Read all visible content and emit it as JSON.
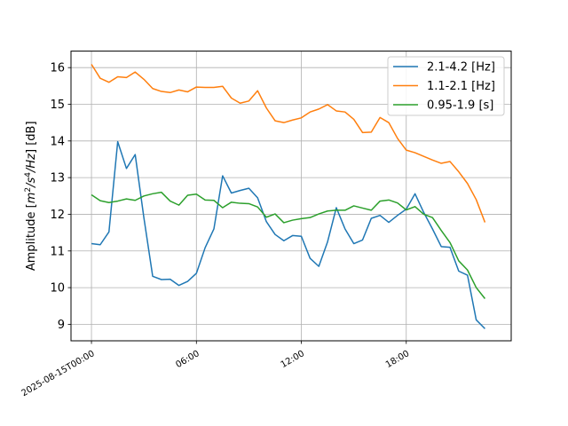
{
  "chart_data": {
    "type": "line",
    "title": "",
    "xlabel": "",
    "ylabel_parts": [
      "Amplitude [",
      "m",
      "2",
      "/",
      "s",
      "4",
      "/",
      "Hz",
      "] [dB]"
    ],
    "x_unit": "hours after 2025-08-15T00:00",
    "xlim": [
      -1.17,
      24.0
    ],
    "ylim": [
      8.55,
      16.45
    ],
    "grid": true,
    "legend_position": "top-right",
    "x_ticks": [
      {
        "value": 0,
        "label": "2025-08-15T00:00"
      },
      {
        "value": 6,
        "label": "06:00"
      },
      {
        "value": 12,
        "label": "12:00"
      },
      {
        "value": 18,
        "label": "18:00"
      }
    ],
    "y_ticks": [
      9,
      10,
      11,
      12,
      13,
      14,
      15,
      16
    ],
    "x": [
      0,
      0.5,
      1,
      1.5,
      2,
      2.5,
      3,
      3.5,
      4,
      4.5,
      5,
      5.5,
      6,
      6.5,
      7,
      7.5,
      8,
      8.5,
      9,
      9.5,
      10,
      10.5,
      11,
      11.5,
      12,
      12.5,
      13,
      13.5,
      14,
      14.5,
      15,
      15.5,
      16,
      16.5,
      17,
      17.5,
      18,
      18.5,
      19,
      19.5,
      20,
      20.5,
      21,
      21.5,
      22,
      22.5
    ],
    "series": [
      {
        "name": "2.1-4.2 [Hz]",
        "color": "#1f77b4",
        "values": [
          11.2,
          11.17,
          11.52,
          13.98,
          13.25,
          13.63,
          11.9,
          10.31,
          10.22,
          10.23,
          10.06,
          10.17,
          10.39,
          11.09,
          11.6,
          13.05,
          12.58,
          12.65,
          12.71,
          12.45,
          11.8,
          11.45,
          11.28,
          11.42,
          11.4,
          10.8,
          10.58,
          11.25,
          12.18,
          11.6,
          11.2,
          11.3,
          11.89,
          11.97,
          11.78,
          11.97,
          12.14,
          12.56,
          12.05,
          11.6,
          11.12,
          11.1,
          10.45,
          10.34,
          9.12,
          8.88
        ]
      },
      {
        "name": "1.1-2.1 [Hz]",
        "color": "#ff7f0e",
        "values": [
          16.09,
          15.71,
          15.6,
          15.75,
          15.73,
          15.88,
          15.68,
          15.43,
          15.35,
          15.32,
          15.39,
          15.34,
          15.47,
          15.46,
          15.46,
          15.49,
          15.17,
          15.03,
          15.09,
          15.37,
          14.9,
          14.55,
          14.5,
          14.57,
          14.63,
          14.79,
          14.87,
          14.99,
          14.82,
          14.79,
          14.59,
          14.23,
          14.24,
          14.64,
          14.5,
          14.07,
          13.75,
          13.68,
          13.58,
          13.48,
          13.39,
          13.44,
          13.16,
          12.84,
          12.4,
          11.78
        ]
      },
      {
        "name": "0.95-1.9 [s]",
        "color": "#2ca02c",
        "values": [
          12.53,
          12.37,
          12.32,
          12.36,
          12.42,
          12.38,
          12.5,
          12.56,
          12.6,
          12.36,
          12.25,
          12.52,
          12.55,
          12.39,
          12.38,
          12.18,
          12.33,
          12.3,
          12.29,
          12.2,
          11.92,
          12.01,
          11.77,
          11.84,
          11.88,
          11.91,
          12.01,
          12.09,
          12.11,
          12.11,
          12.23,
          12.17,
          12.11,
          12.36,
          12.39,
          12.31,
          12.12,
          12.21,
          12.0,
          11.91,
          11.56,
          11.23,
          10.73,
          10.48,
          10.0,
          9.7
        ]
      }
    ]
  }
}
